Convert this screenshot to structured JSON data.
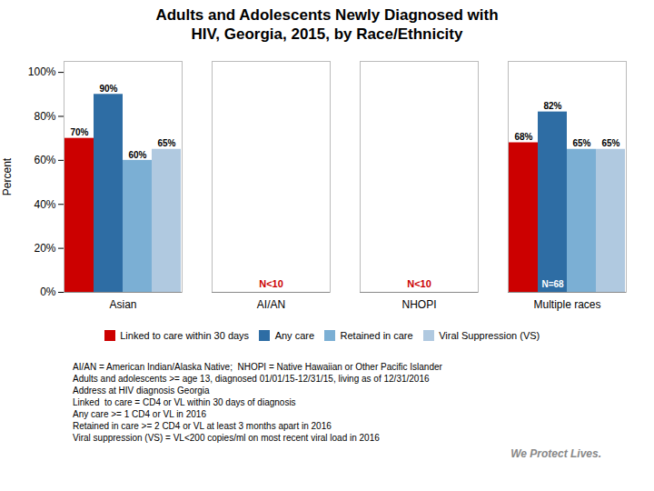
{
  "chart_data": {
    "type": "bar",
    "title": "Adults and Adolescents Newly Diagnosed with\nHIV, Georgia, 2015, by Race/Ethnicity",
    "categories": [
      "Asian",
      "AI/AN",
      "NHOPI",
      "Multiple races"
    ],
    "series": [
      {
        "name": "Linked to care within 30 days",
        "color": "#cc0000",
        "values": [
          70,
          null,
          null,
          68
        ],
        "value_labels": [
          "70%",
          null,
          null,
          "68%"
        ]
      },
      {
        "name": "Any care",
        "color": "#2e6da4",
        "values": [
          90,
          null,
          null,
          82
        ],
        "value_labels": [
          "90%",
          null,
          null,
          "82%"
        ]
      },
      {
        "name": "Retained in care",
        "color": "#7bafd4",
        "values": [
          60,
          null,
          null,
          65
        ],
        "value_labels": [
          "60%",
          null,
          null,
          "65%"
        ]
      },
      {
        "name": "Viral Suppression (VS)",
        "color": "#b0c9e0",
        "values": [
          65,
          null,
          null,
          65
        ],
        "value_labels": [
          "65%",
          null,
          null,
          "65%"
        ]
      }
    ],
    "ylabel": "Percent",
    "ylim": [
      0,
      105
    ],
    "yticks": [
      {
        "value": 0,
        "label": "0%"
      },
      {
        "value": 20,
        "label": "20%"
      },
      {
        "value": 40,
        "label": "40%"
      },
      {
        "value": 60,
        "label": "60%"
      },
      {
        "value": 80,
        "label": "80%"
      },
      {
        "value": 100,
        "label": "100%"
      }
    ],
    "grid": false,
    "legend": "bottom",
    "data_labels": true,
    "annotations": [
      {
        "text": "N<10",
        "category": "AI/AN",
        "color": "#cc0000"
      },
      {
        "text": "N<10",
        "category": "NHOPI",
        "color": "#cc0000"
      },
      {
        "text": "N=68",
        "category": "Multiple races",
        "series": "Any care",
        "color": "#ffffff"
      }
    ],
    "footnotes": [
      "AI/AN = American Indian/Alaska Native;  NHOPI = Native Hawaiian or Other Pacific Islander",
      "Adults and adolescents >= age 13, diagnosed 01/01/15-12/31/15, living as of 12/31/2016",
      "Address at HIV diagnosis Georgia",
      "Linked  to care = CD4 or VL within 30 days of diagnosis",
      "Any care >= 1 CD4 or VL in 2016",
      "Retained in care >= 2 CD4 or VL at least 3 months apart in 2016",
      "Viral suppression (VS) = VL<200 copies/ml on most recent viral load in 2016"
    ],
    "watermark": "We Protect Lives."
  }
}
